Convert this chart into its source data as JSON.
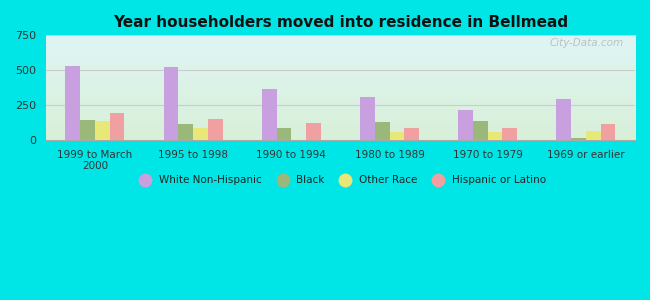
{
  "title": "Year householders moved into residence in Bellmead",
  "categories": [
    "1999 to March\n2000",
    "1995 to 1998",
    "1990 to 1994",
    "1980 to 1989",
    "1970 to 1979",
    "1969 or earlier"
  ],
  "series": {
    "White Non-Hispanic": [
      530,
      520,
      365,
      305,
      215,
      295
    ],
    "Black": [
      145,
      115,
      85,
      130,
      135,
      15
    ],
    "Other Race": [
      140,
      90,
      0,
      55,
      55,
      65
    ],
    "Hispanic or Latino": [
      195,
      150,
      120,
      90,
      85,
      115
    ]
  },
  "colors": {
    "White Non-Hispanic": "#c8a0e0",
    "Black": "#9ab87a",
    "Other Race": "#e8e878",
    "Hispanic or Latino": "#f0a0a0"
  },
  "ylim": [
    0,
    750
  ],
  "yticks": [
    0,
    250,
    500,
    750
  ],
  "bg_top": "#dff5f5",
  "bg_bottom": "#d8f0d8",
  "outer_background": "#00e5e5",
  "bar_width": 0.15,
  "watermark": "City-Data.com"
}
